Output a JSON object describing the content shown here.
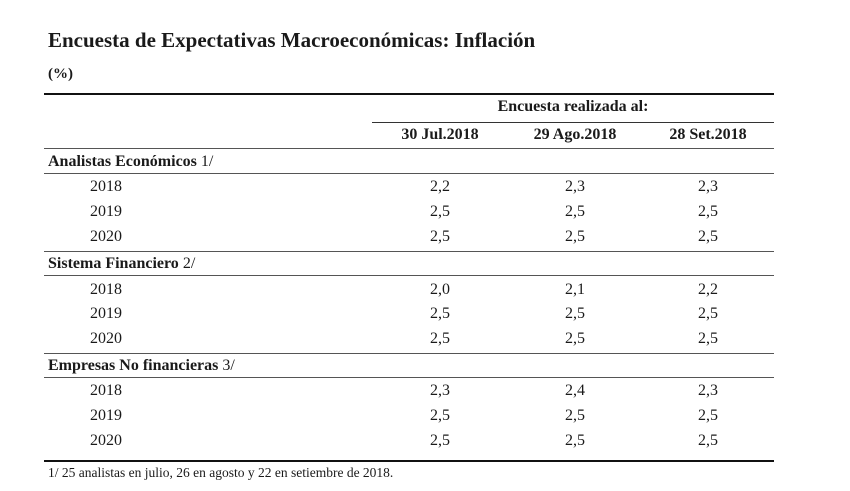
{
  "title": "Encuesta de Expectativas Macroeconómicas: Inflación",
  "unit": "(%)",
  "survey_header": "Encuesta realizada al:",
  "columns": [
    "30 Jul.2018",
    "29 Ago.2018",
    "28 Set.2018"
  ],
  "groups": [
    {
      "label": "Analistas Económicos",
      "note": "1/",
      "rows": [
        {
          "year": "2018",
          "values": [
            "2,2",
            "2,3",
            "2,3"
          ]
        },
        {
          "year": "2019",
          "values": [
            "2,5",
            "2,5",
            "2,5"
          ]
        },
        {
          "year": "2020",
          "values": [
            "2,5",
            "2,5",
            "2,5"
          ]
        }
      ]
    },
    {
      "label": "Sistema Financiero",
      "note": "2/",
      "rows": [
        {
          "year": "2018",
          "values": [
            "2,0",
            "2,1",
            "2,2"
          ]
        },
        {
          "year": "2019",
          "values": [
            "2,5",
            "2,5",
            "2,5"
          ]
        },
        {
          "year": "2020",
          "values": [
            "2,5",
            "2,5",
            "2,5"
          ]
        }
      ]
    },
    {
      "label": "Empresas No financieras",
      "note": "3/",
      "rows": [
        {
          "year": "2018",
          "values": [
            "2,3",
            "2,4",
            "2,3"
          ]
        },
        {
          "year": "2019",
          "values": [
            "2,5",
            "2,5",
            "2,5"
          ]
        },
        {
          "year": "2020",
          "values": [
            "2,5",
            "2,5",
            "2,5"
          ]
        }
      ]
    }
  ],
  "footnote": "1/ 25 analistas en julio, 26 en agosto y 22 en setiembre de 2018."
}
